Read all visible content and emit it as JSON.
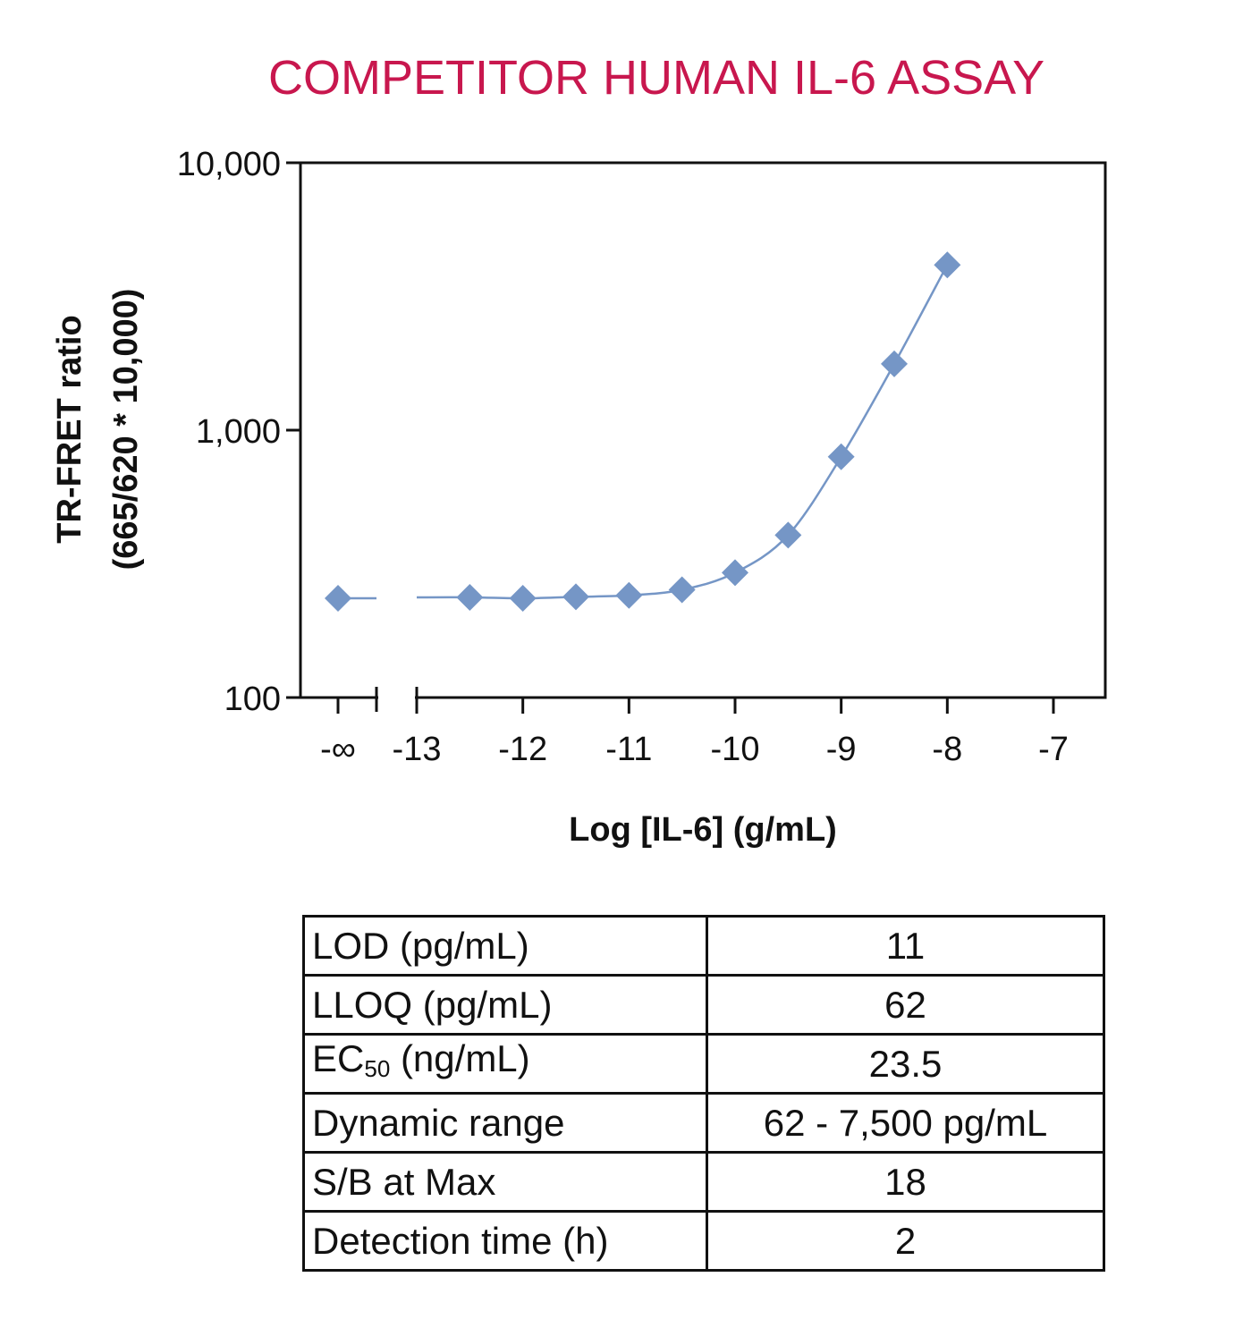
{
  "colors": {
    "title": "#c8174e",
    "series": "#7596c6",
    "axis": "#111111"
  },
  "chart_data": {
    "type": "scatter",
    "title": "COMPETITOR HUMAN IL-6 ASSAY",
    "xlabel": "Log [IL-6] (g/mL)",
    "ylabel_line1": "TR-FRET ratio",
    "ylabel_line2": "(665/620 * 10,000)",
    "y_scale": "log",
    "ylim": [
      100,
      10000
    ],
    "xlim": [
      -13,
      -7
    ],
    "y_ticks": [
      {
        "value": 100,
        "label": "100"
      },
      {
        "value": 1000,
        "label": "1,000"
      },
      {
        "value": 10000,
        "label": "10,000"
      }
    ],
    "x_ticks": [
      {
        "value": -13,
        "label": "-13"
      },
      {
        "value": -12,
        "label": "-12"
      },
      {
        "value": -11,
        "label": "-11"
      },
      {
        "value": -10,
        "label": "-10"
      },
      {
        "value": -9,
        "label": "-9"
      },
      {
        "value": -8,
        "label": "-8"
      },
      {
        "value": -7,
        "label": "-7"
      }
    ],
    "zero_point": {
      "label": "-∞",
      "y": 235
    },
    "x_break": true,
    "series": [
      {
        "marker": "diamond",
        "zero_y": 235,
        "points": [
          {
            "x": -12.5,
            "y": 237
          },
          {
            "x": -12.0,
            "y": 235
          },
          {
            "x": -11.5,
            "y": 238
          },
          {
            "x": -11.0,
            "y": 241
          },
          {
            "x": -10.5,
            "y": 253
          },
          {
            "x": -10.0,
            "y": 293
          },
          {
            "x": -9.5,
            "y": 405
          },
          {
            "x": -9.0,
            "y": 795
          },
          {
            "x": -8.5,
            "y": 1770
          },
          {
            "x": -8.0,
            "y": 4150
          }
        ]
      }
    ]
  },
  "stats_table": {
    "rows": [
      {
        "label": "LOD (pg/mL)",
        "value": "11"
      },
      {
        "label": "LLOQ (pg/mL)",
        "value": "62"
      },
      {
        "label_main": "EC",
        "label_sub": "50",
        "label_rest": " (ng/mL)",
        "value": "23.5"
      },
      {
        "label": "Dynamic range",
        "value": "62 - 7,500 pg/mL"
      },
      {
        "label": "S/B at Max",
        "value": "18"
      },
      {
        "label": "Detection time (h)",
        "value": "2"
      }
    ]
  }
}
